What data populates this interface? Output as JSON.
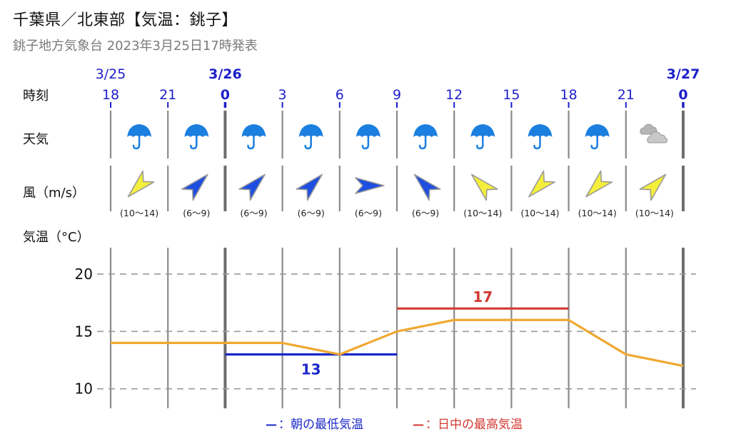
{
  "header": {
    "title": "千葉県／北東部【気温：銚子】",
    "subtitle": "銚子地方気象台 2023年3月25日17時発表"
  },
  "rows": {
    "time_label": "時刻",
    "weather_label": "天気",
    "wind_label": "風（m/s）",
    "temp_label": "気温（°C）"
  },
  "timeline": {
    "slots": [
      {
        "date": "3/25",
        "hour": "18",
        "major": false,
        "weather": "rain",
        "wind_dir": "SW",
        "wind_speed": "(10〜14)",
        "wind_color": "yellow"
      },
      {
        "date": "",
        "hour": "21",
        "major": false,
        "weather": "rain",
        "wind_dir": "NE",
        "wind_speed": "(6〜9)",
        "wind_color": "blue"
      },
      {
        "date": "3/26",
        "hour": "0",
        "major": true,
        "weather": "rain",
        "wind_dir": "NE",
        "wind_speed": "(6〜9)",
        "wind_color": "blue"
      },
      {
        "date": "",
        "hour": "3",
        "major": false,
        "weather": "rain",
        "wind_dir": "NE",
        "wind_speed": "(6〜9)",
        "wind_color": "blue"
      },
      {
        "date": "",
        "hour": "6",
        "major": false,
        "weather": "rain",
        "wind_dir": "E",
        "wind_speed": "(6〜9)",
        "wind_color": "blue"
      },
      {
        "date": "",
        "hour": "9",
        "major": false,
        "weather": "rain",
        "wind_dir": "NW",
        "wind_speed": "(6〜9)",
        "wind_color": "blue"
      },
      {
        "date": "",
        "hour": "12",
        "major": false,
        "weather": "rain",
        "wind_dir": "NW",
        "wind_speed": "(10〜14)",
        "wind_color": "yellow"
      },
      {
        "date": "",
        "hour": "15",
        "major": false,
        "weather": "rain",
        "wind_dir": "SW",
        "wind_speed": "(10〜14)",
        "wind_color": "yellow"
      },
      {
        "date": "",
        "hour": "18",
        "major": false,
        "weather": "rain",
        "wind_dir": "SW",
        "wind_speed": "(10〜14)",
        "wind_color": "yellow"
      },
      {
        "date": "",
        "hour": "21",
        "major": false,
        "weather": "cloudy",
        "wind_dir": "NE",
        "wind_speed": "(10〜14)",
        "wind_color": "yellow"
      },
      {
        "date": "3/27",
        "hour": "0",
        "major": true,
        "weather": "",
        "wind_dir": "",
        "wind_speed": "",
        "wind_color": ""
      }
    ]
  },
  "colors": {
    "date_blue": "#1c1fc8",
    "temp_line": "#f0a830",
    "min_line": "#1c28c8",
    "max_line": "#d23a32",
    "umbrella": "#1b7fe0",
    "arrow_blue": "#1e4fe0",
    "arrow_yellow": "#f4ef3a"
  },
  "chart_data": {
    "type": "line",
    "x": [
      "18",
      "21",
      "0",
      "3",
      "6",
      "9",
      "12",
      "15",
      "18",
      "21",
      "0"
    ],
    "series": [
      {
        "values": [
          14,
          14,
          14,
          14,
          13,
          15,
          16,
          16,
          16,
          13,
          12
        ]
      }
    ],
    "yticks": [
      10,
      15,
      20
    ],
    "ylim": [
      8.3,
      22.3
    ],
    "min_temp": {
      "value": 13,
      "label": "13",
      "from_index": 2,
      "to_index": 5
    },
    "max_temp": {
      "value": 17,
      "label": "17",
      "from_index": 5,
      "to_index": 8
    },
    "grid": true
  },
  "legend": {
    "min_dash": "—",
    "min_text": "：朝の最低気温",
    "max_dash": "—",
    "max_text": "：日中の最高気温"
  }
}
